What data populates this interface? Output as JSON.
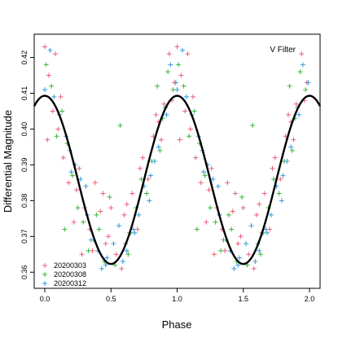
{
  "chart_data": {
    "type": "scatter",
    "title": "",
    "annotation": "V Filter",
    "xlabel": "Phase",
    "ylabel": "Differential Magnitude",
    "xlim": [
      -0.08,
      2.08
    ],
    "ylim": [
      0.3555,
      0.4265
    ],
    "y_reversed": false,
    "grid": false,
    "legend_position": "bottom-left",
    "x_ticks": [
      0.0,
      0.5,
      1.0,
      1.5,
      2.0
    ],
    "x_tick_labels": [
      "0.0",
      "0.5",
      "1.0",
      "1.5",
      "2.0"
    ],
    "y_ticks": [
      0.36,
      0.37,
      0.38,
      0.39,
      0.4,
      0.41,
      0.42
    ],
    "y_tick_labels": [
      "0.36",
      "0.37",
      "0.38",
      "0.39",
      "0.40",
      "0.41",
      "0.42"
    ],
    "model_curve": {
      "mean": 0.3858,
      "amplitude": 0.0235,
      "period": 1.0,
      "x_range": [
        -0.08,
        2.08
      ],
      "color": "#000000"
    },
    "series": [
      {
        "name": "20200303",
        "color": "#e8607a",
        "x": [
          0.0,
          0.03,
          0.06,
          0.1,
          0.14,
          0.18,
          0.22,
          0.26,
          0.3,
          0.34,
          0.38,
          0.42,
          0.46,
          0.5,
          0.54,
          0.58,
          0.62,
          0.66,
          0.7,
          0.74,
          0.78,
          0.82,
          0.86,
          0.9,
          0.94,
          0.98,
          0.02,
          0.12,
          0.24,
          0.36,
          0.48,
          0.6,
          0.72,
          0.84,
          0.96,
          0.08,
          0.28,
          0.44,
          0.64,
          0.88
        ],
        "y": [
          0.423,
          0.415,
          0.405,
          0.4,
          0.392,
          0.385,
          0.374,
          0.389,
          0.378,
          0.372,
          0.385,
          0.377,
          0.368,
          0.378,
          0.365,
          0.361,
          0.379,
          0.382,
          0.372,
          0.392,
          0.386,
          0.398,
          0.402,
          0.407,
          0.421,
          0.413,
          0.397,
          0.409,
          0.383,
          0.366,
          0.37,
          0.376,
          0.389,
          0.404,
          0.408,
          0.421,
          0.365,
          0.382,
          0.371,
          0.397
        ]
      },
      {
        "name": "20200308",
        "color": "#3db33d",
        "x": [
          0.01,
          0.05,
          0.09,
          0.13,
          0.17,
          0.21,
          0.25,
          0.29,
          0.33,
          0.37,
          0.41,
          0.45,
          0.49,
          0.53,
          0.57,
          0.61,
          0.65,
          0.69,
          0.73,
          0.77,
          0.81,
          0.85,
          0.89,
          0.93,
          0.97,
          0.15,
          0.39,
          0.63,
          0.87
        ],
        "y": [
          0.418,
          0.412,
          0.398,
          0.405,
          0.396,
          0.387,
          0.378,
          0.374,
          0.366,
          0.369,
          0.372,
          0.363,
          0.381,
          0.362,
          0.401,
          0.368,
          0.371,
          0.378,
          0.386,
          0.382,
          0.391,
          0.412,
          0.403,
          0.416,
          0.411,
          0.372,
          0.376,
          0.365,
          0.394
        ]
      },
      {
        "name": "20200312",
        "color": "#3399dd",
        "x": [
          0.0,
          0.04,
          0.07,
          0.11,
          0.16,
          0.19,
          0.23,
          0.27,
          0.31,
          0.35,
          0.4,
          0.43,
          0.47,
          0.52,
          0.56,
          0.59,
          0.62,
          0.67,
          0.71,
          0.75,
          0.79,
          0.83,
          0.86,
          0.91,
          0.95,
          0.99,
          0.2,
          0.32,
          0.46,
          0.68,
          0.8,
          0.92
        ],
        "y": [
          0.411,
          0.422,
          0.409,
          0.404,
          0.398,
          0.394,
          0.39,
          0.386,
          0.384,
          0.369,
          0.366,
          0.361,
          0.364,
          0.368,
          0.373,
          0.363,
          0.366,
          0.372,
          0.376,
          0.384,
          0.38,
          0.391,
          0.395,
          0.406,
          0.418,
          0.413,
          0.388,
          0.376,
          0.362,
          0.371,
          0.387,
          0.404
        ]
      }
    ]
  }
}
